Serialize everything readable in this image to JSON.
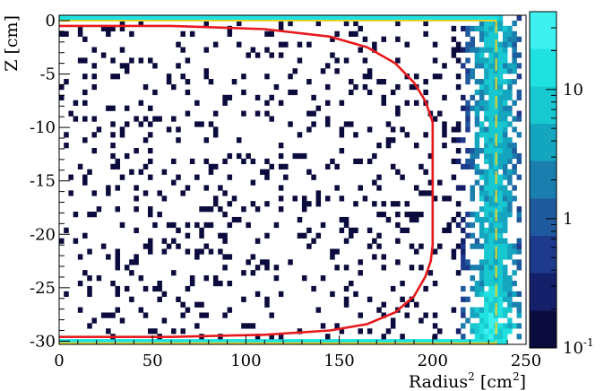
{
  "chart_data": {
    "type": "heatmap",
    "title": "",
    "xlabel": {
      "base": "Radius",
      "sup": "2",
      "unit_open": " [cm",
      "unit_sup": "2",
      "unit_close": "]"
    },
    "ylabel": "Z [cm]",
    "xlim": [
      0,
      250
    ],
    "ylim": [
      -30.3,
      0.5
    ],
    "x_ticks": [
      0,
      50,
      100,
      150,
      200,
      250
    ],
    "x_tick_labels": [
      "0",
      "50",
      "100",
      "150",
      "200",
      "250"
    ],
    "y_ticks": [
      0,
      -5,
      -10,
      -15,
      -20,
      -25,
      -30
    ],
    "y_tick_labels": [
      "0",
      "-5",
      "-10",
      "-15",
      "-20",
      "-25",
      "-30"
    ],
    "colorbar": {
      "scale": "log",
      "range": [
        0.1,
        40
      ],
      "ticks": [
        {
          "value": 0.1,
          "base": "10",
          "sup": "-1"
        },
        {
          "value": 1,
          "base": "1",
          "sup": ""
        },
        {
          "value": 10,
          "base": "10",
          "sup": ""
        }
      ],
      "colors": [
        "#0b0b3d",
        "#15206a",
        "#1e3a8c",
        "#1f5a9f",
        "#1a7fae",
        "#15a6bf",
        "#17c8d0",
        "#1fe2e0",
        "#3ef0f0"
      ]
    },
    "grid": false,
    "legend": "none",
    "overlays": [
      {
        "type": "line",
        "color": "#e8191c",
        "x": [
          0,
          60,
          110,
          145,
          165,
          180,
          190,
          196,
          199,
          200,
          200,
          199,
          196,
          190,
          180,
          165,
          145,
          110,
          60,
          0
        ],
        "y": [
          -0.5,
          -0.5,
          -0.8,
          -1.5,
          -2.5,
          -4.0,
          -5.8,
          -7.5,
          -9.0,
          -9.5,
          -21.0,
          -22.5,
          -24.0,
          -25.8,
          -27.3,
          -28.4,
          -29.0,
          -29.4,
          -29.6,
          -29.6
        ]
      },
      {
        "type": "line",
        "color": "#e6d22a",
        "style": "dashed",
        "x": [
          234,
          234
        ],
        "y": [
          0.0,
          -30.2
        ]
      },
      {
        "type": "line",
        "color": "#e6d22a",
        "style": "solid",
        "x": [
          0,
          234
        ],
        "y": [
          0.0,
          0.0
        ]
      },
      {
        "type": "line",
        "color": "#e6d22a",
        "style": "solid",
        "x": [
          0,
          234
        ],
        "y": [
          -30.2,
          -30.2
        ]
      }
    ],
    "density_model": {
      "background_occupancy": 0.115,
      "background_value": 0.12,
      "edge_band_x": [
        210,
        247
      ],
      "edge_band_peak_x": 233,
      "edge_band_peak_value": 8,
      "edge_band_bottom_boost_z": [
        -30.3,
        -24
      ],
      "edge_band_bottom_peak_value": 25,
      "top_row_value": 20,
      "bottom_row_value": 20
    }
  }
}
